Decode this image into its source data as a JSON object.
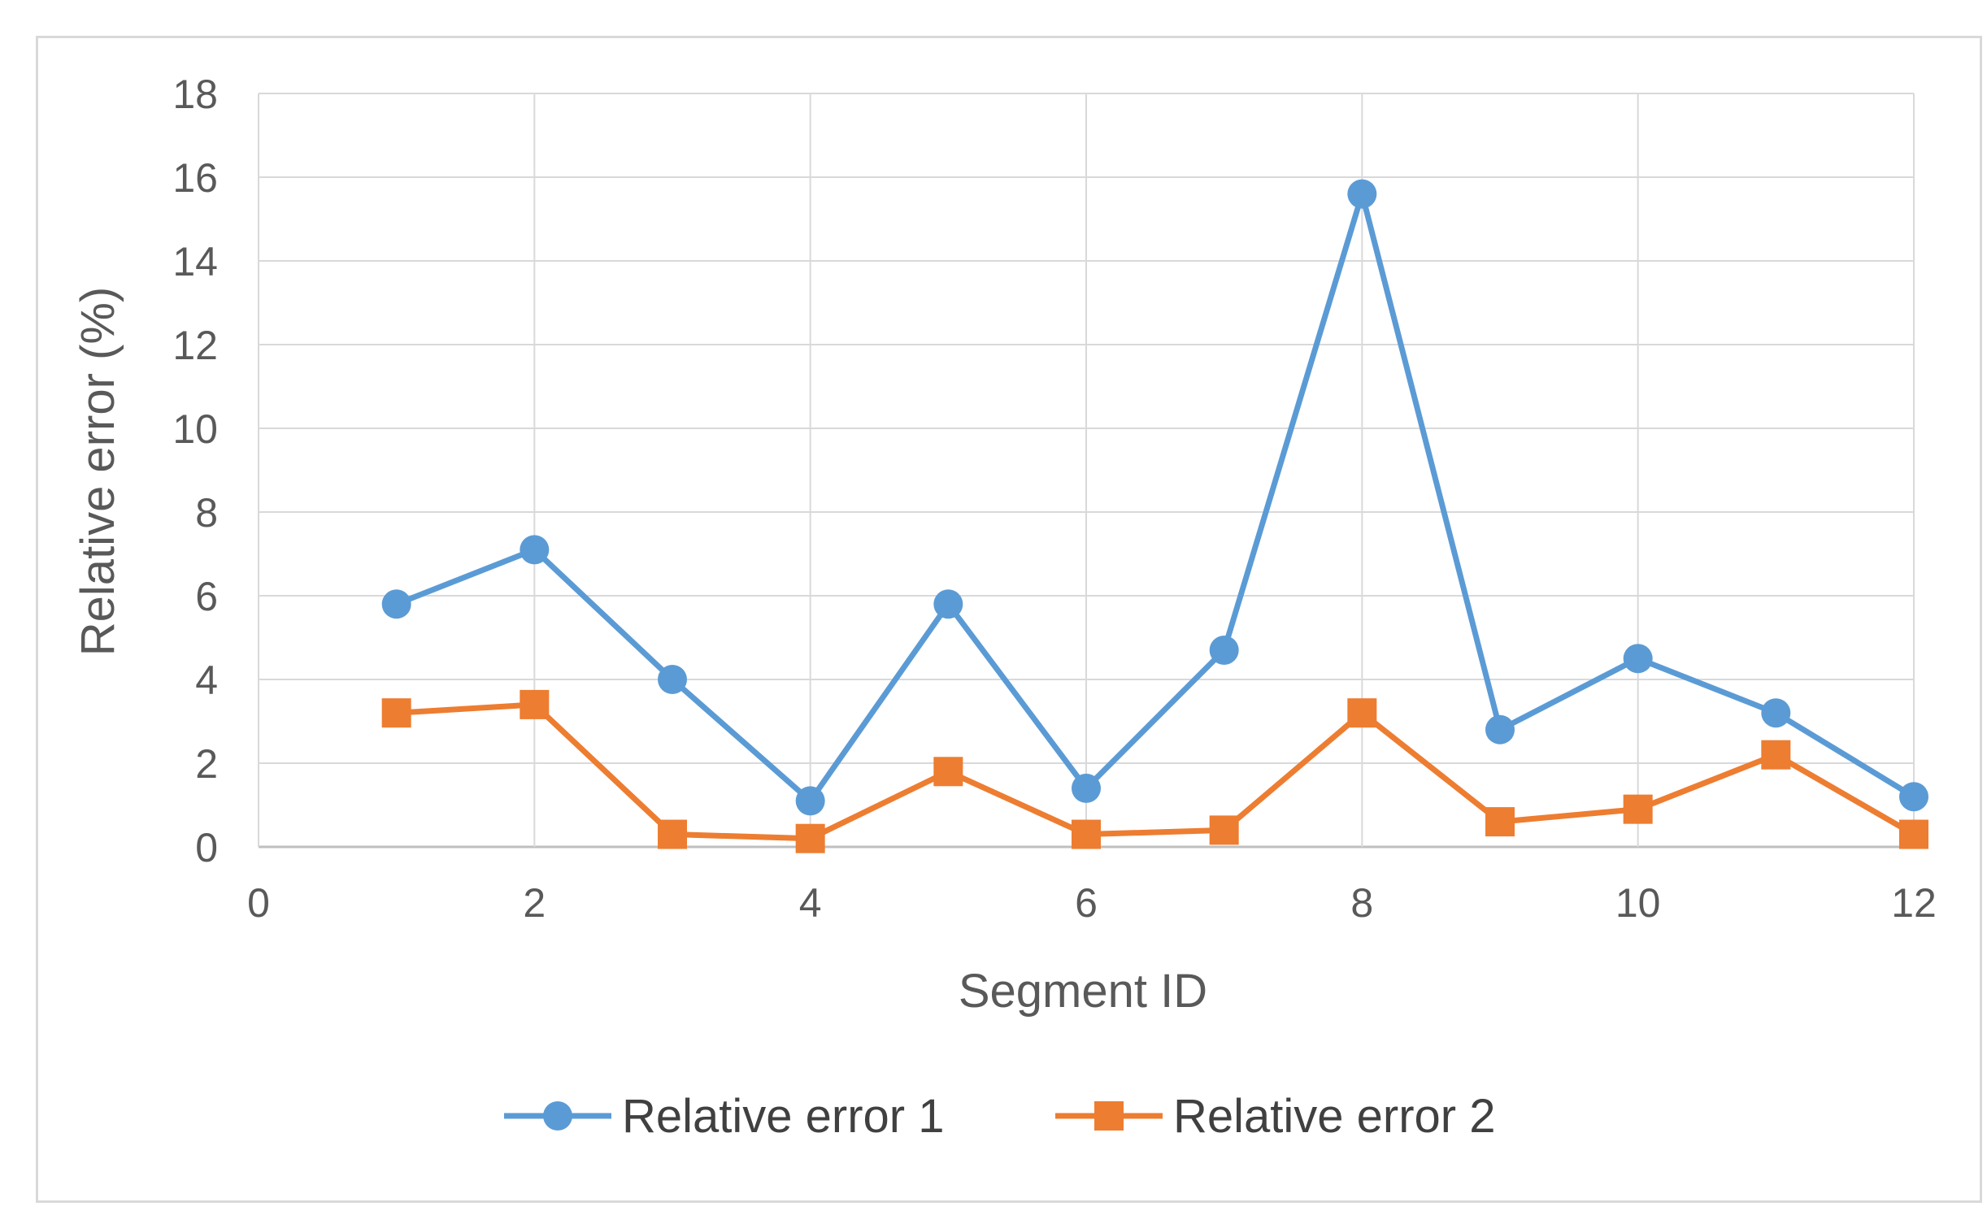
{
  "chart_data": {
    "type": "line",
    "title": "",
    "xlabel": "Segment ID",
    "ylabel": "Relative error (%)",
    "xlim": [
      0,
      12
    ],
    "ylim": [
      0,
      18
    ],
    "xticks": [
      0,
      2,
      4,
      6,
      8,
      10,
      12
    ],
    "yticks": [
      0,
      2,
      4,
      6,
      8,
      10,
      12,
      14,
      16,
      18
    ],
    "grid": true,
    "legend_position": "bottom",
    "x": [
      1,
      2,
      3,
      4,
      5,
      6,
      7,
      8,
      9,
      10,
      11,
      12
    ],
    "series": [
      {
        "name": "Relative error 1",
        "color": "#5b9bd5",
        "marker": "circle",
        "values": [
          5.8,
          7.1,
          4.0,
          1.1,
          5.8,
          1.4,
          4.7,
          15.6,
          2.8,
          4.5,
          3.2,
          1.2
        ]
      },
      {
        "name": "Relative error 2",
        "color": "#ed7d31",
        "marker": "square",
        "values": [
          3.2,
          3.4,
          0.3,
          0.2,
          1.8,
          0.3,
          0.4,
          3.2,
          0.6,
          0.9,
          2.2,
          0.3
        ]
      }
    ]
  }
}
